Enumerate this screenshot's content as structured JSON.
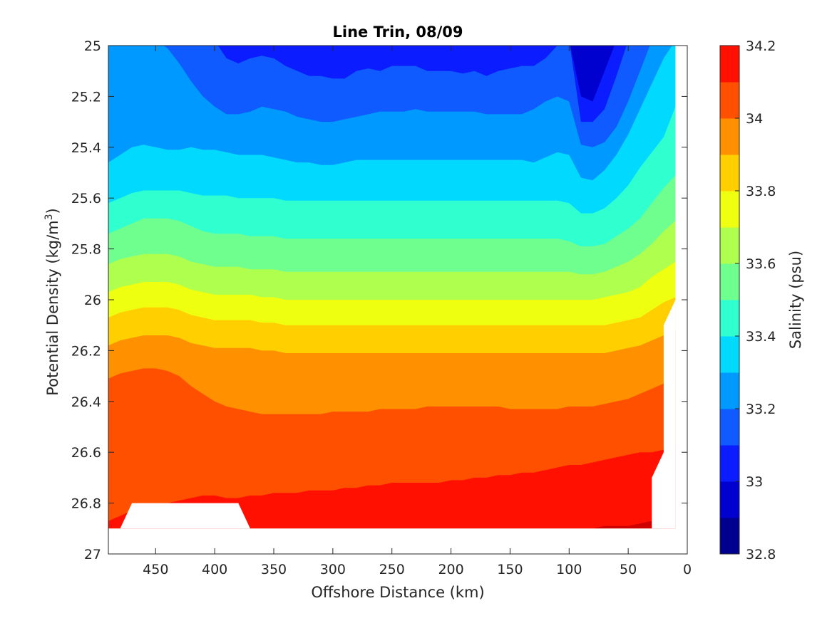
{
  "chart_data": {
    "type": "heatmap",
    "subtype": "filled-contour",
    "title": "Line Trin, 08/09",
    "xlabel": "Offshore Distance (km)",
    "ylabel_main": "Potential Density (kg/m",
    "ylabel_sup": "3",
    "ylabel_close": ")",
    "colorbar_label": "Salinity (psu)",
    "x_reversed": true,
    "y_reversed": true,
    "xlim": [
      0,
      490
    ],
    "ylim": [
      25,
      27
    ],
    "x_ticks": [
      "450",
      "400",
      "350",
      "300",
      "250",
      "200",
      "150",
      "100",
      "50",
      "0"
    ],
    "x_tick_values": [
      450,
      400,
      350,
      300,
      250,
      200,
      150,
      100,
      50,
      0
    ],
    "y_ticks": [
      "25",
      "25.2",
      "25.4",
      "25.6",
      "25.8",
      "26",
      "26.2",
      "26.4",
      "26.6",
      "26.8",
      "27"
    ],
    "y_tick_values": [
      25,
      25.2,
      25.4,
      25.6,
      25.8,
      26,
      26.2,
      26.4,
      26.6,
      26.8,
      27
    ],
    "colorbar_ticks": [
      "34.2",
      "34",
      "33.8",
      "33.6",
      "33.4",
      "33.2",
      "33",
      "32.8"
    ],
    "colorbar_tick_values": [
      34.2,
      34,
      33.8,
      33.6,
      33.4,
      33.2,
      33,
      32.8
    ],
    "colorbar_range": [
      32.8,
      34.2
    ],
    "levels": [
      32.8,
      32.9,
      33.0,
      33.1,
      33.2,
      33.3,
      33.4,
      33.5,
      33.6,
      33.7,
      33.8,
      33.9,
      34.0,
      34.1,
      34.2
    ],
    "colors": [
      "#00008f",
      "#0000cf",
      "#0b1dff",
      "#0f5bff",
      "#0099ff",
      "#02d9ff",
      "#30ffcf",
      "#6fff8f",
      "#afff4f",
      "#efff10",
      "#ffcf00",
      "#ff9000",
      "#ff5000",
      "#ff1000",
      "#cf0000"
    ],
    "colors_note": "",
    "x_grid": [
      490,
      480,
      470,
      460,
      450,
      440,
      430,
      420,
      410,
      400,
      390,
      380,
      370,
      360,
      350,
      340,
      330,
      320,
      310,
      300,
      290,
      280,
      270,
      260,
      250,
      240,
      230,
      220,
      210,
      200,
      190,
      180,
      170,
      160,
      150,
      140,
      130,
      120,
      110,
      100,
      90,
      80,
      70,
      60,
      50,
      40,
      30,
      20,
      10
    ],
    "isopycnal_contours": [
      {
        "salinity": 33.0,
        "density": [
          24.98,
          24.98,
          24.98,
          24.98,
          24.98,
          24.98,
          24.98,
          24.98,
          24.98,
          24.98,
          24.98,
          24.98,
          24.98,
          24.98,
          24.98,
          24.98,
          24.98,
          24.98,
          24.98,
          24.98,
          24.98,
          24.98,
          24.98,
          24.98,
          24.98,
          24.98,
          24.98,
          24.98,
          24.98,
          24.98,
          24.98,
          24.98,
          24.98,
          24.98,
          24.98,
          24.98,
          24.98,
          24.98,
          24.98,
          24.98,
          25.2,
          25.22,
          25.1,
          24.98,
          24.98,
          24.98,
          24.98,
          24.98,
          24.98
        ]
      },
      {
        "salinity": 33.1,
        "density": [
          24.98,
          24.98,
          24.98,
          24.98,
          24.98,
          24.98,
          24.98,
          24.98,
          24.98,
          24.98,
          25.05,
          25.07,
          25.05,
          25.04,
          25.05,
          25.08,
          25.1,
          25.12,
          25.12,
          25.13,
          25.13,
          25.1,
          25.09,
          25.1,
          25.08,
          25.08,
          25.08,
          25.1,
          25.1,
          25.1,
          25.11,
          25.1,
          25.12,
          25.1,
          25.09,
          25.08,
          25.08,
          25.05,
          25.0,
          24.98,
          25.3,
          25.3,
          25.25,
          25.12,
          24.98,
          24.98,
          24.98,
          24.98,
          24.98
        ]
      },
      {
        "salinity": 33.2,
        "density": [
          24.98,
          24.98,
          24.98,
          24.98,
          24.98,
          25.01,
          25.07,
          25.14,
          25.2,
          25.24,
          25.27,
          25.27,
          25.26,
          25.24,
          25.25,
          25.26,
          25.28,
          25.29,
          25.3,
          25.3,
          25.29,
          25.28,
          25.27,
          25.26,
          25.26,
          25.26,
          25.25,
          25.26,
          25.26,
          25.26,
          25.26,
          25.26,
          25.27,
          25.27,
          25.27,
          25.27,
          25.25,
          25.22,
          25.2,
          25.22,
          25.39,
          25.4,
          25.38,
          25.32,
          25.22,
          25.1,
          24.98,
          24.98,
          24.98
        ]
      },
      {
        "salinity": 33.3,
        "density": [
          25.46,
          25.43,
          25.4,
          25.39,
          25.4,
          25.41,
          25.41,
          25.4,
          25.41,
          25.41,
          25.42,
          25.43,
          25.43,
          25.43,
          25.44,
          25.45,
          25.46,
          25.46,
          25.47,
          25.47,
          25.46,
          25.45,
          25.45,
          25.45,
          25.45,
          25.45,
          25.45,
          25.45,
          25.45,
          25.45,
          25.45,
          25.45,
          25.45,
          25.45,
          25.45,
          25.45,
          25.46,
          25.44,
          25.42,
          25.43,
          25.52,
          25.53,
          25.49,
          25.43,
          25.35,
          25.25,
          25.15,
          25.05,
          24.98
        ]
      },
      {
        "salinity": 33.4,
        "density": [
          25.62,
          25.6,
          25.58,
          25.57,
          25.57,
          25.57,
          25.57,
          25.58,
          25.59,
          25.59,
          25.59,
          25.6,
          25.6,
          25.6,
          25.6,
          25.61,
          25.61,
          25.61,
          25.61,
          25.61,
          25.61,
          25.61,
          25.61,
          25.61,
          25.61,
          25.61,
          25.61,
          25.61,
          25.61,
          25.61,
          25.61,
          25.61,
          25.61,
          25.61,
          25.61,
          25.61,
          25.61,
          25.61,
          25.61,
          25.62,
          25.66,
          25.66,
          25.64,
          25.6,
          25.55,
          25.48,
          25.42,
          25.36,
          25.24
        ]
      },
      {
        "salinity": 33.5,
        "density": [
          25.74,
          25.72,
          25.7,
          25.68,
          25.68,
          25.68,
          25.69,
          25.71,
          25.73,
          25.74,
          25.74,
          25.74,
          25.75,
          25.75,
          25.75,
          25.76,
          25.76,
          25.76,
          25.76,
          25.76,
          25.76,
          25.76,
          25.76,
          25.76,
          25.76,
          25.76,
          25.76,
          25.76,
          25.76,
          25.76,
          25.76,
          25.76,
          25.76,
          25.76,
          25.76,
          25.76,
          25.76,
          25.76,
          25.76,
          25.77,
          25.79,
          25.79,
          25.78,
          25.75,
          25.72,
          25.68,
          25.62,
          25.56,
          25.51
        ]
      },
      {
        "salinity": 33.6,
        "density": [
          25.86,
          25.84,
          25.83,
          25.82,
          25.82,
          25.82,
          25.83,
          25.85,
          25.86,
          25.87,
          25.87,
          25.87,
          25.88,
          25.88,
          25.88,
          25.89,
          25.89,
          25.89,
          25.89,
          25.89,
          25.89,
          25.89,
          25.89,
          25.89,
          25.89,
          25.89,
          25.89,
          25.89,
          25.89,
          25.89,
          25.89,
          25.89,
          25.89,
          25.89,
          25.89,
          25.89,
          25.89,
          25.89,
          25.89,
          25.89,
          25.9,
          25.9,
          25.89,
          25.87,
          25.85,
          25.82,
          25.78,
          25.73,
          25.69
        ]
      },
      {
        "salinity": 33.7,
        "density": [
          25.97,
          25.95,
          25.94,
          25.93,
          25.93,
          25.93,
          25.94,
          25.96,
          25.97,
          25.98,
          25.98,
          25.98,
          25.98,
          25.99,
          25.99,
          26.0,
          26.0,
          26.0,
          26.0,
          26.0,
          26.0,
          26.0,
          26.0,
          26.0,
          26.0,
          26.0,
          26.0,
          26.0,
          26.0,
          26.0,
          26.0,
          26.0,
          26.0,
          26.0,
          26.0,
          26.0,
          26.0,
          26.0,
          26.0,
          26.0,
          26.0,
          26.0,
          25.99,
          25.98,
          25.97,
          25.95,
          25.91,
          25.88,
          25.85
        ]
      },
      {
        "salinity": 33.8,
        "density": [
          26.07,
          26.05,
          26.04,
          26.03,
          26.03,
          26.03,
          26.04,
          26.06,
          26.07,
          26.08,
          26.08,
          26.08,
          26.08,
          26.09,
          26.09,
          26.1,
          26.1,
          26.1,
          26.1,
          26.1,
          26.1,
          26.1,
          26.1,
          26.1,
          26.1,
          26.1,
          26.1,
          26.1,
          26.1,
          26.1,
          26.1,
          26.1,
          26.1,
          26.1,
          26.1,
          26.1,
          26.1,
          26.1,
          26.1,
          26.1,
          26.1,
          26.1,
          26.1,
          26.09,
          26.08,
          26.07,
          26.04,
          26.01,
          25.99
        ]
      },
      {
        "salinity": 33.9,
        "density": [
          26.18,
          26.16,
          26.15,
          26.14,
          26.14,
          26.14,
          26.15,
          26.17,
          26.18,
          26.19,
          26.19,
          26.19,
          26.19,
          26.2,
          26.2,
          26.21,
          26.21,
          26.21,
          26.21,
          26.21,
          26.21,
          26.21,
          26.21,
          26.21,
          26.21,
          26.21,
          26.21,
          26.21,
          26.21,
          26.21,
          26.21,
          26.21,
          26.21,
          26.21,
          26.21,
          26.21,
          26.21,
          26.21,
          26.21,
          26.21,
          26.21,
          26.21,
          26.21,
          26.2,
          26.19,
          26.18,
          26.16,
          26.14,
          26.12
        ]
      },
      {
        "salinity": 34.0,
        "density": [
          26.31,
          26.29,
          26.28,
          26.27,
          26.27,
          26.28,
          26.3,
          26.34,
          26.37,
          26.4,
          26.42,
          26.43,
          26.44,
          26.45,
          26.45,
          26.45,
          26.45,
          26.45,
          26.45,
          26.44,
          26.44,
          26.44,
          26.44,
          26.43,
          26.43,
          26.43,
          26.43,
          26.42,
          26.42,
          26.42,
          26.42,
          26.42,
          26.42,
          26.42,
          26.43,
          26.43,
          26.43,
          26.43,
          26.43,
          26.42,
          26.42,
          26.42,
          26.41,
          26.4,
          26.39,
          26.37,
          26.35,
          26.33,
          26.31
        ]
      },
      {
        "salinity": 34.1,
        "density": [
          26.87,
          26.85,
          26.83,
          26.81,
          26.8,
          26.8,
          26.79,
          26.78,
          26.77,
          26.77,
          26.78,
          26.78,
          26.77,
          26.77,
          26.76,
          26.76,
          26.76,
          26.75,
          26.75,
          26.75,
          26.74,
          26.74,
          26.73,
          26.73,
          26.72,
          26.72,
          26.72,
          26.72,
          26.72,
          26.71,
          26.71,
          26.7,
          26.7,
          26.69,
          26.69,
          26.68,
          26.68,
          26.67,
          26.66,
          26.65,
          26.65,
          26.64,
          26.63,
          26.62,
          26.61,
          26.6,
          26.6,
          26.59,
          26.58
        ]
      },
      {
        "salinity": 34.2,
        "density": [
          26.92,
          26.9,
          26.9,
          26.9,
          26.9,
          26.9,
          26.9,
          26.9,
          26.9,
          26.9,
          26.9,
          26.9,
          26.9,
          26.9,
          26.9,
          26.9,
          26.9,
          26.9,
          26.9,
          26.9,
          26.9,
          26.9,
          26.9,
          26.9,
          26.9,
          26.9,
          26.9,
          26.9,
          26.9,
          26.9,
          26.9,
          26.9,
          26.9,
          26.9,
          26.9,
          26.9,
          26.9,
          26.9,
          26.9,
          26.9,
          26.9,
          26.9,
          26.89,
          26.89,
          26.89,
          26.88,
          26.87,
          26.9,
          26.9
        ]
      }
    ],
    "surface_band_salinity": 32.95,
    "surface_band_note": "",
    "masked_regions": [
      {
        "x": [
          490,
          480,
          470,
          380,
          370,
          490
        ],
        "y": [
          26.9,
          26.9,
          26.8,
          26.8,
          26.9,
          26.9
        ]
      },
      {
        "x": [
          10,
          10,
          20,
          20,
          30,
          30,
          20,
          10
        ],
        "y": [
          27.0,
          26.0,
          26.1,
          26.6,
          26.7,
          26.9,
          26.9,
          26.9
        ]
      }
    ],
    "mask_note": ""
  }
}
